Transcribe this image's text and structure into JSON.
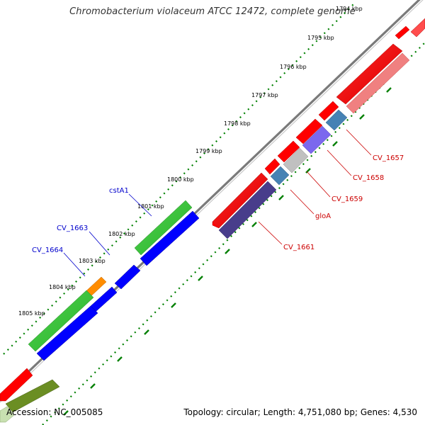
{
  "map": {
    "title": "Chromobacterium violaceum ATCC 12472, complete genome",
    "accession": "Accession: NC_005085",
    "summary": "Topology: circular; Length: 4,751,080 bp; Genes: 4,530",
    "ticks": [
      "1794 kbp",
      "1795 kbp",
      "1796 kbp",
      "1797 kbp",
      "1798 kbp",
      "1799 kbp",
      "1800 kbp",
      "1801 kbp",
      "1802 kbp",
      "1803 kbp",
      "1804 kbp",
      "1805 kbp"
    ],
    "forward_gene_labels": [
      "cstA1",
      "CV_1663",
      "CV_1664"
    ],
    "reverse_gene_labels": [
      "CV_1657",
      "CV_1658",
      "CV_1659",
      "gloA",
      "CV_1661"
    ],
    "colors": {
      "forward_cds": "#ff0000",
      "reverse_cds": "#ff0000",
      "forward_label": "#0000cc",
      "reverse_label": "#cc0000",
      "backbone": "#808080",
      "tick_dots": "#008000"
    }
  }
}
